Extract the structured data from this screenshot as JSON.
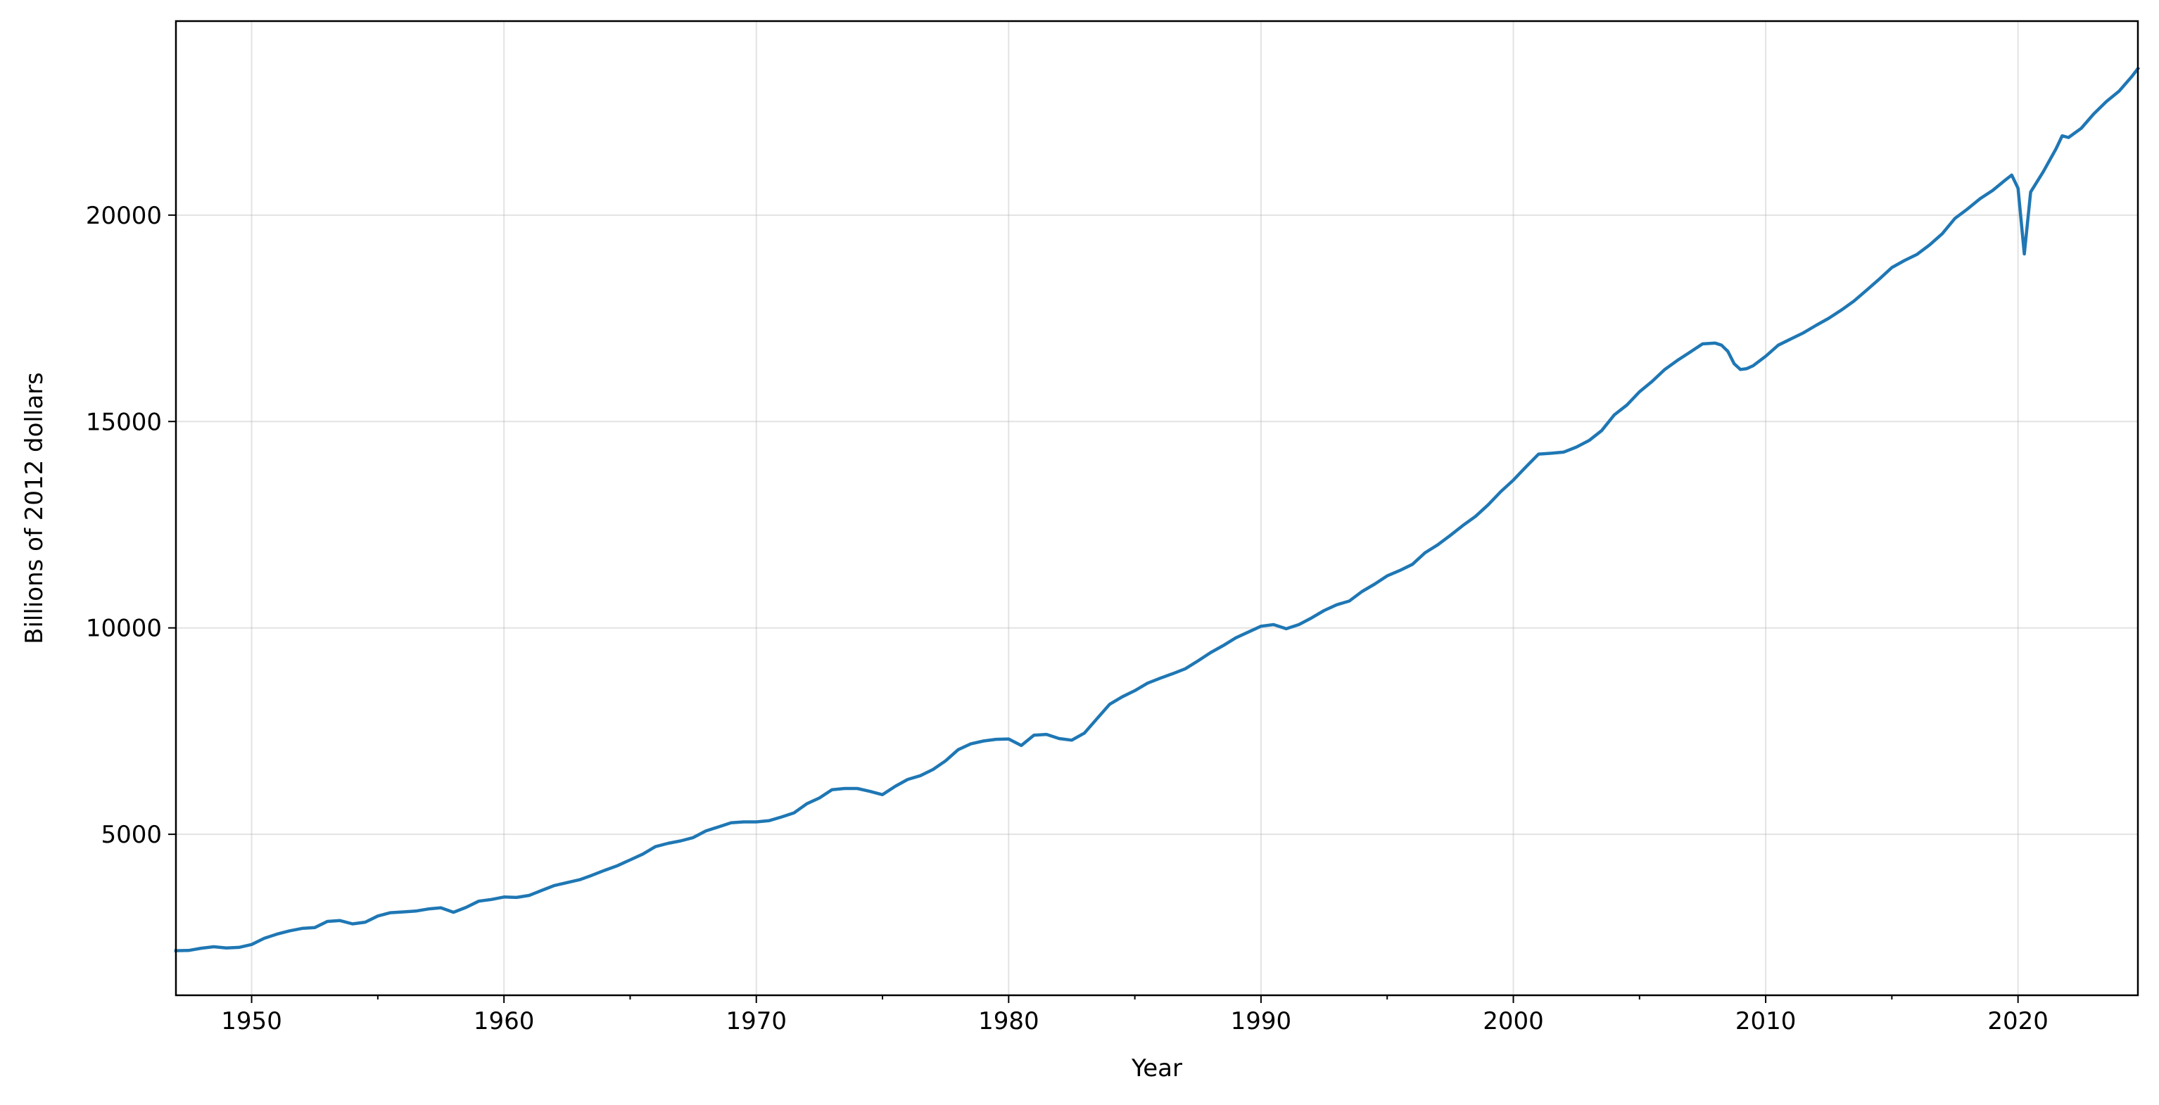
{
  "chart_data": {
    "type": "line",
    "xlabel": "Year",
    "ylabel": "Billions of 2012 dollars",
    "xlim": [
      1947,
      2024.75
    ],
    "ylim": [
      1100,
      24700
    ],
    "grid": true,
    "x_ticks": [
      1950,
      1960,
      1970,
      1980,
      1990,
      2000,
      2010,
      2020
    ],
    "x_tick_labels": [
      "1950",
      "1960",
      "1970",
      "1980",
      "1990",
      "2000",
      "2010",
      "2020"
    ],
    "x_minor_ticks": [
      1955,
      1965,
      1975,
      1985,
      1995,
      2005,
      2015
    ],
    "y_ticks": [
      5000,
      10000,
      15000,
      20000
    ],
    "y_tick_labels": [
      "5000",
      "10000",
      "15000",
      "20000"
    ],
    "line_color": "#1f77b4",
    "series": [
      {
        "x": [
          1947.0,
          1947.5,
          1948.0,
          1948.5,
          1949.0,
          1949.5,
          1950.0,
          1950.5,
          1951.0,
          1951.5,
          1952.0,
          1952.5,
          1953.0,
          1953.5,
          1954.0,
          1954.5,
          1955.0,
          1955.5,
          1956.0,
          1956.5,
          1957.0,
          1957.5,
          1958.0,
          1958.5,
          1959.0,
          1959.5,
          1960.0,
          1960.5,
          1961.0,
          1961.5,
          1962.0,
          1962.5,
          1963.0,
          1963.5,
          1964.0,
          1964.5,
          1965.0,
          1965.5,
          1966.0,
          1966.5,
          1967.0,
          1967.5,
          1968.0,
          1968.5,
          1969.0,
          1969.5,
          1970.0,
          1970.5,
          1971.0,
          1971.5,
          1972.0,
          1972.5,
          1973.0,
          1973.5,
          1974.0,
          1974.5,
          1975.0,
          1975.5,
          1976.0,
          1976.5,
          1977.0,
          1977.5,
          1978.0,
          1978.5,
          1979.0,
          1979.5,
          1980.0,
          1980.5,
          1981.0,
          1981.5,
          1982.0,
          1982.5,
          1983.0,
          1983.5,
          1984.0,
          1984.5,
          1985.0,
          1985.5,
          1986.0,
          1986.5,
          1987.0,
          1987.5,
          1988.0,
          1988.5,
          1989.0,
          1989.5,
          1990.0,
          1990.5,
          1991.0,
          1991.5,
          1992.0,
          1992.5,
          1993.0,
          1993.5,
          1994.0,
          1994.5,
          1995.0,
          1995.5,
          1996.0,
          1996.5,
          1997.0,
          1997.5,
          1998.0,
          1998.5,
          1999.0,
          1999.5,
          2000.0,
          2000.5,
          2001.0,
          2001.5,
          2002.0,
          2002.5,
          2003.0,
          2003.5,
          2004.0,
          2004.5,
          2005.0,
          2005.5,
          2006.0,
          2006.5,
          2007.0,
          2007.5,
          2008.0,
          2008.25,
          2008.5,
          2008.75,
          2009.0,
          2009.25,
          2009.5,
          2010.0,
          2010.5,
          2011.0,
          2011.5,
          2012.0,
          2012.5,
          2013.0,
          2013.5,
          2014.0,
          2014.5,
          2015.0,
          2015.5,
          2016.0,
          2016.5,
          2017.0,
          2017.5,
          2018.0,
          2018.5,
          2019.0,
          2019.5,
          2019.75,
          2020.0,
          2020.25,
          2020.5,
          2021.0,
          2021.5,
          2021.75,
          2022.0,
          2022.5,
          2023.0,
          2023.5,
          2024.0,
          2024.5,
          2024.75
        ],
        "values": [
          2180,
          2185,
          2240,
          2275,
          2245,
          2260,
          2330,
          2480,
          2580,
          2660,
          2720,
          2740,
          2890,
          2910,
          2830,
          2870,
          3020,
          3100,
          3120,
          3140,
          3190,
          3220,
          3110,
          3230,
          3380,
          3420,
          3480,
          3470,
          3520,
          3640,
          3760,
          3830,
          3900,
          4010,
          4130,
          4240,
          4380,
          4520,
          4700,
          4780,
          4840,
          4920,
          5080,
          5180,
          5280,
          5300,
          5300,
          5330,
          5420,
          5520,
          5740,
          5880,
          6080,
          6110,
          6110,
          6040,
          5960,
          6160,
          6330,
          6420,
          6570,
          6780,
          7050,
          7190,
          7260,
          7300,
          7310,
          7150,
          7400,
          7420,
          7320,
          7280,
          7450,
          7800,
          8150,
          8330,
          8480,
          8660,
          8780,
          8890,
          9010,
          9200,
          9400,
          9570,
          9760,
          9900,
          10040,
          10080,
          9980,
          10080,
          10240,
          10420,
          10560,
          10650,
          10880,
          11060,
          11260,
          11390,
          11540,
          11820,
          12010,
          12240,
          12480,
          12700,
          12980,
          13300,
          13580,
          13900,
          14210,
          14230,
          14260,
          14380,
          14540,
          14780,
          15160,
          15400,
          15720,
          15970,
          16260,
          16480,
          16680,
          16880,
          16900,
          16850,
          16700,
          16400,
          16260,
          16280,
          16350,
          16580,
          16850,
          17000,
          17150,
          17330,
          17500,
          17700,
          17920,
          18180,
          18450,
          18730,
          18900,
          19050,
          19280,
          19550,
          19920,
          20150,
          20400,
          20600,
          20850,
          20970,
          20650,
          19060,
          20560,
          21050,
          21600,
          21920,
          21880,
          22100,
          22450,
          22750,
          23000,
          23350,
          23550
        ]
      }
    ]
  }
}
